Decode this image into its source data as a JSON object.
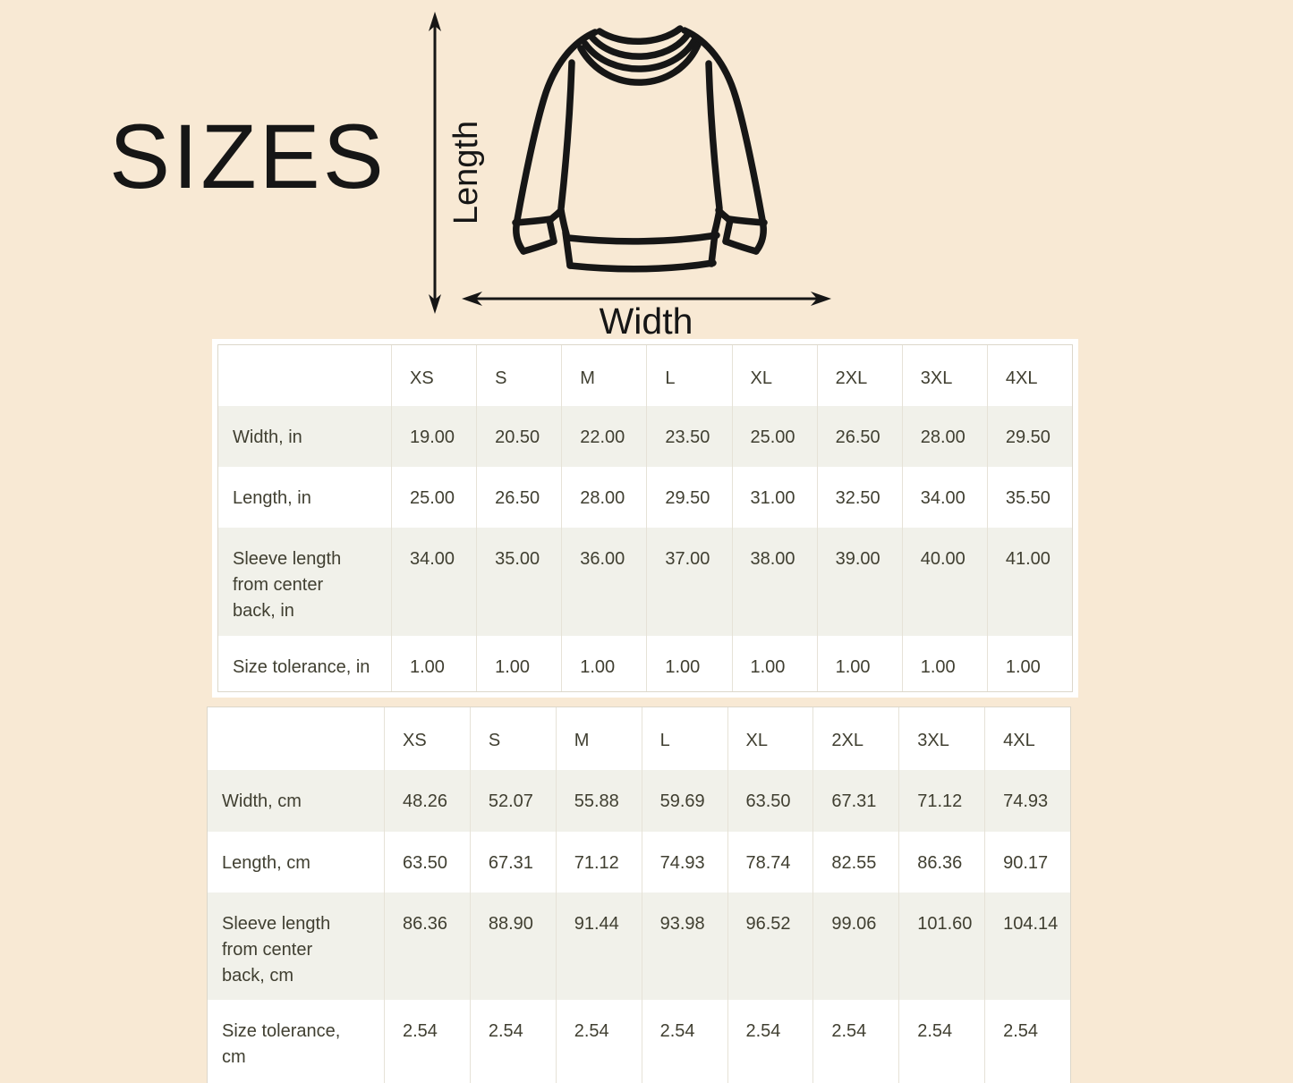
{
  "title": "SIZES",
  "diagram": {
    "length_label": "Length",
    "width_label": "Width",
    "garment": "sweatshirt-line-drawing"
  },
  "colors": {
    "background": "#f8e9d4",
    "panel": "#ffffff",
    "stripe": "#f1f1ea",
    "grid_line": "#e6e2d7",
    "table_text": "#403f31",
    "ink": "#161616"
  },
  "tables": [
    {
      "unit": "inches",
      "columns": [
        "XS",
        "S",
        "M",
        "L",
        "XL",
        "2XL",
        "3XL",
        "4XL"
      ],
      "rows": [
        {
          "label": "Width, in",
          "values": [
            "19.00",
            "20.50",
            "22.00",
            "23.50",
            "25.00",
            "26.50",
            "28.00",
            "29.50"
          ]
        },
        {
          "label": "Length, in",
          "values": [
            "25.00",
            "26.50",
            "28.00",
            "29.50",
            "31.00",
            "32.50",
            "34.00",
            "35.50"
          ]
        },
        {
          "label": "Sleeve length\nfrom center\nback, in",
          "values": [
            "34.00",
            "35.00",
            "36.00",
            "37.00",
            "38.00",
            "39.00",
            "40.00",
            "41.00"
          ]
        },
        {
          "label": "Size tolerance, in",
          "values": [
            "1.00",
            "1.00",
            "1.00",
            "1.00",
            "1.00",
            "1.00",
            "1.00",
            "1.00"
          ]
        }
      ]
    },
    {
      "unit": "centimeters",
      "columns": [
        "XS",
        "S",
        "M",
        "L",
        "XL",
        "2XL",
        "3XL",
        "4XL"
      ],
      "rows": [
        {
          "label": "Width, cm",
          "values": [
            "48.26",
            "52.07",
            "55.88",
            "59.69",
            "63.50",
            "67.31",
            "71.12",
            "74.93"
          ]
        },
        {
          "label": "Length, cm",
          "values": [
            "63.50",
            "67.31",
            "71.12",
            "74.93",
            "78.74",
            "82.55",
            "86.36",
            "90.17"
          ]
        },
        {
          "label": "Sleeve length\nfrom center\nback, cm",
          "values": [
            "86.36",
            "88.90",
            "91.44",
            "93.98",
            "96.52",
            "99.06",
            "101.60",
            "104.14"
          ]
        },
        {
          "label": "Size tolerance,\ncm",
          "values": [
            "2.54",
            "2.54",
            "2.54",
            "2.54",
            "2.54",
            "2.54",
            "2.54",
            "2.54"
          ]
        }
      ]
    }
  ]
}
